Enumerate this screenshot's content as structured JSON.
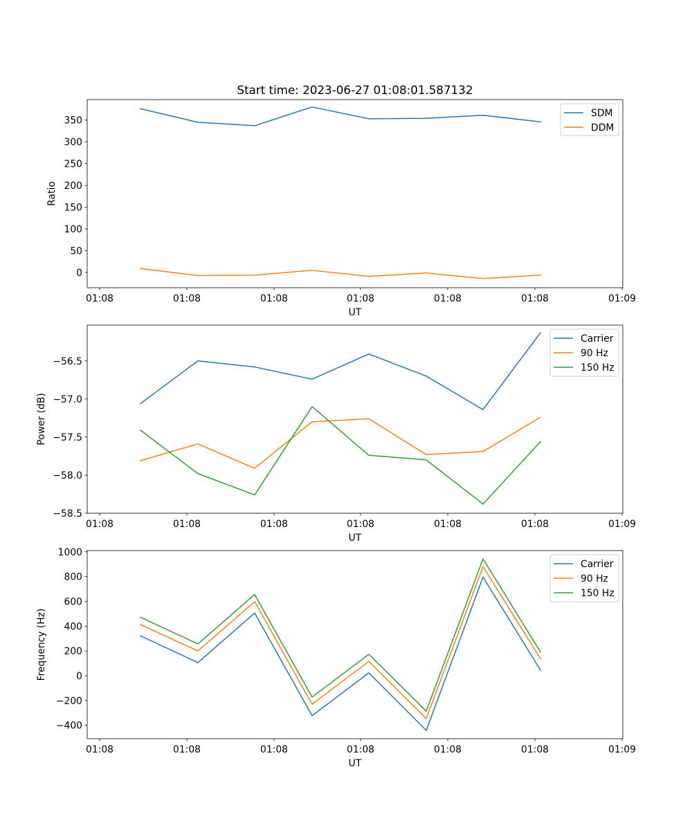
{
  "figure": {
    "title": "Start time: 2023-06-27 01:08:01.587132"
  },
  "chart_data": [
    {
      "type": "line",
      "title": "Start time: 2023-06-27 01:08:01.587132",
      "xlabel": "UT",
      "ylabel": "Ratio",
      "x_tick_labels": [
        "01:08",
        "01:08",
        "01:08",
        "01:08",
        "01:08",
        "01:08",
        "01:09"
      ],
      "y_ticks": [
        0,
        50,
        100,
        150,
        200,
        250,
        300,
        350
      ],
      "ylim": [
        -35,
        397
      ],
      "grid": false,
      "legend_position": "top-right",
      "series": [
        {
          "name": "SDM",
          "color": "#1f77b4",
          "values": [
            376,
            345,
            337,
            380,
            353,
            354,
            361,
            346
          ]
        },
        {
          "name": "DDM",
          "color": "#ff7f0e",
          "values": [
            9,
            -7,
            -6,
            5,
            -9,
            -1,
            -14,
            -6
          ]
        }
      ]
    },
    {
      "type": "line",
      "title": "",
      "xlabel": "UT",
      "ylabel": "Power (dB)",
      "x_tick_labels": [
        "01:08",
        "01:08",
        "01:08",
        "01:08",
        "01:08",
        "01:08",
        "01:09"
      ],
      "y_ticks": [
        -58.5,
        -58.0,
        -57.5,
        -57.0,
        -56.5
      ],
      "y_tick_labels": [
        "−58.5",
        "−58.0",
        "−57.5",
        "−57.0",
        "−56.5"
      ],
      "ylim": [
        -58.5,
        -56.03
      ],
      "grid": false,
      "legend_position": "top-right",
      "series": [
        {
          "name": "Carrier",
          "color": "#1f77b4",
          "values": [
            -57.06,
            -56.5,
            -56.58,
            -56.74,
            -56.41,
            -56.7,
            -57.14,
            -56.13
          ]
        },
        {
          "name": "90 Hz",
          "color": "#ff7f0e",
          "values": [
            -57.81,
            -57.59,
            -57.91,
            -57.3,
            -57.26,
            -57.73,
            -57.69,
            -57.24
          ]
        },
        {
          "name": "150 Hz",
          "color": "#2ca02c",
          "values": [
            -57.41,
            -57.98,
            -58.26,
            -57.1,
            -57.74,
            -57.8,
            -58.38,
            -57.56
          ]
        }
      ]
    },
    {
      "type": "line",
      "title": "",
      "xlabel": "UT",
      "ylabel": "Frequency (Hz)",
      "x_tick_labels": [
        "01:08",
        "01:08",
        "01:08",
        "01:08",
        "01:08",
        "01:08",
        "01:09"
      ],
      "y_ticks": [
        -400,
        -200,
        0,
        200,
        400,
        600,
        800,
        1000
      ],
      "y_tick_labels": [
        "−400",
        "−200",
        "0",
        "200",
        "400",
        "600",
        "800",
        "1000"
      ],
      "ylim": [
        -508,
        1010
      ],
      "grid": false,
      "legend_position": "top-right",
      "series": [
        {
          "name": "Carrier",
          "color": "#1f77b4",
          "values": [
            322,
            106,
            506,
            -322,
            23,
            -441,
            796,
            46
          ]
        },
        {
          "name": "90 Hz",
          "color": "#ff7f0e",
          "values": [
            413,
            200,
            598,
            -230,
            116,
            -345,
            880,
            138
          ]
        },
        {
          "name": "150 Hz",
          "color": "#2ca02c",
          "values": [
            472,
            257,
            655,
            -172,
            173,
            -285,
            943,
            192
          ]
        }
      ]
    }
  ]
}
